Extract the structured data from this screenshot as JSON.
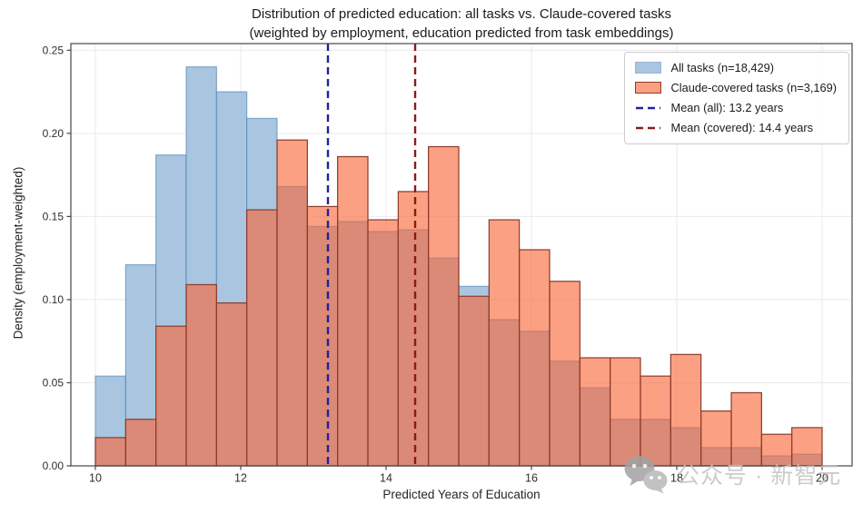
{
  "title": {
    "line1": "Distribution of predicted education: all tasks vs. Claude-covered tasks",
    "line2": "(weighted by employment, education predicted from task embeddings)"
  },
  "axes": {
    "xlabel": "Predicted Years of Education",
    "ylabel": "Density (employment-weighted)"
  },
  "watermark": {
    "text": "公众号 · 新智元"
  },
  "chart_data": {
    "type": "bar",
    "subtype": "overlaid-histogram",
    "title": "Distribution of predicted education: all tasks vs. Claude-covered tasks",
    "subtitle": "(weighted by employment, education predicted from task embeddings)",
    "xlabel": "Predicted Years of Education",
    "ylabel": "Density (employment-weighted)",
    "xlim": [
      9.6625,
      20.4125
    ],
    "ylim": [
      0,
      0.254
    ],
    "xticks": [
      10,
      12,
      14,
      16,
      18,
      20
    ],
    "yticks": [
      0,
      0.05,
      0.1,
      0.15,
      0.2,
      0.25
    ],
    "ytick_labels": [
      "0.00",
      "0.05",
      "0.10",
      "0.15",
      "0.20",
      "0.25"
    ],
    "grid": true,
    "legend_position": "upper right",
    "bin_width": 0.4167,
    "bin_edges": [
      10.0,
      10.417,
      10.833,
      11.25,
      11.667,
      12.083,
      12.5,
      12.917,
      13.333,
      13.75,
      14.167,
      14.583,
      15.0,
      15.417,
      15.833,
      16.25,
      16.667,
      17.083,
      17.5,
      17.917,
      18.333,
      18.75,
      19.167,
      19.583,
      20.0
    ],
    "series": [
      {
        "name": "All tasks (n=18,429)",
        "fill": "#a9c5e0",
        "edge": "rgba(70,130,180,0.6)",
        "legend_fill": "#a9c5e0",
        "legend_edge": "#9db4cc",
        "values": [
          0.054,
          0.121,
          0.187,
          0.24,
          0.225,
          0.209,
          0.168,
          0.144,
          0.147,
          0.141,
          0.142,
          0.125,
          0.108,
          0.088,
          0.081,
          0.063,
          0.047,
          0.028,
          0.028,
          0.023,
          0.011,
          0.011,
          0.006,
          0.007
        ]
      },
      {
        "name": "Claude-covered tasks (n=3,169)",
        "fill": "rgba(248,101,53,0.62)",
        "edge": "#8e3a2b",
        "legend_fill": "#fb9f82",
        "legend_edge": "#8e3a2b",
        "values": [
          0.017,
          0.028,
          0.084,
          0.109,
          0.098,
          0.154,
          0.196,
          0.156,
          0.186,
          0.148,
          0.165,
          0.192,
          0.102,
          0.148,
          0.13,
          0.111,
          0.065,
          0.065,
          0.054,
          0.067,
          0.033,
          0.044,
          0.019,
          0.023
        ]
      }
    ],
    "mean_lines": [
      {
        "label": "Mean (all): 13.2 years",
        "value": 13.2,
        "color": "#22219b"
      },
      {
        "label": "Mean (covered): 14.4 years",
        "value": 14.4,
        "color": "#8b1a1a"
      }
    ],
    "colors": {
      "grid": "#e9e9ef",
      "spine": "#454545",
      "tick_label": "#2e2e2e"
    }
  }
}
